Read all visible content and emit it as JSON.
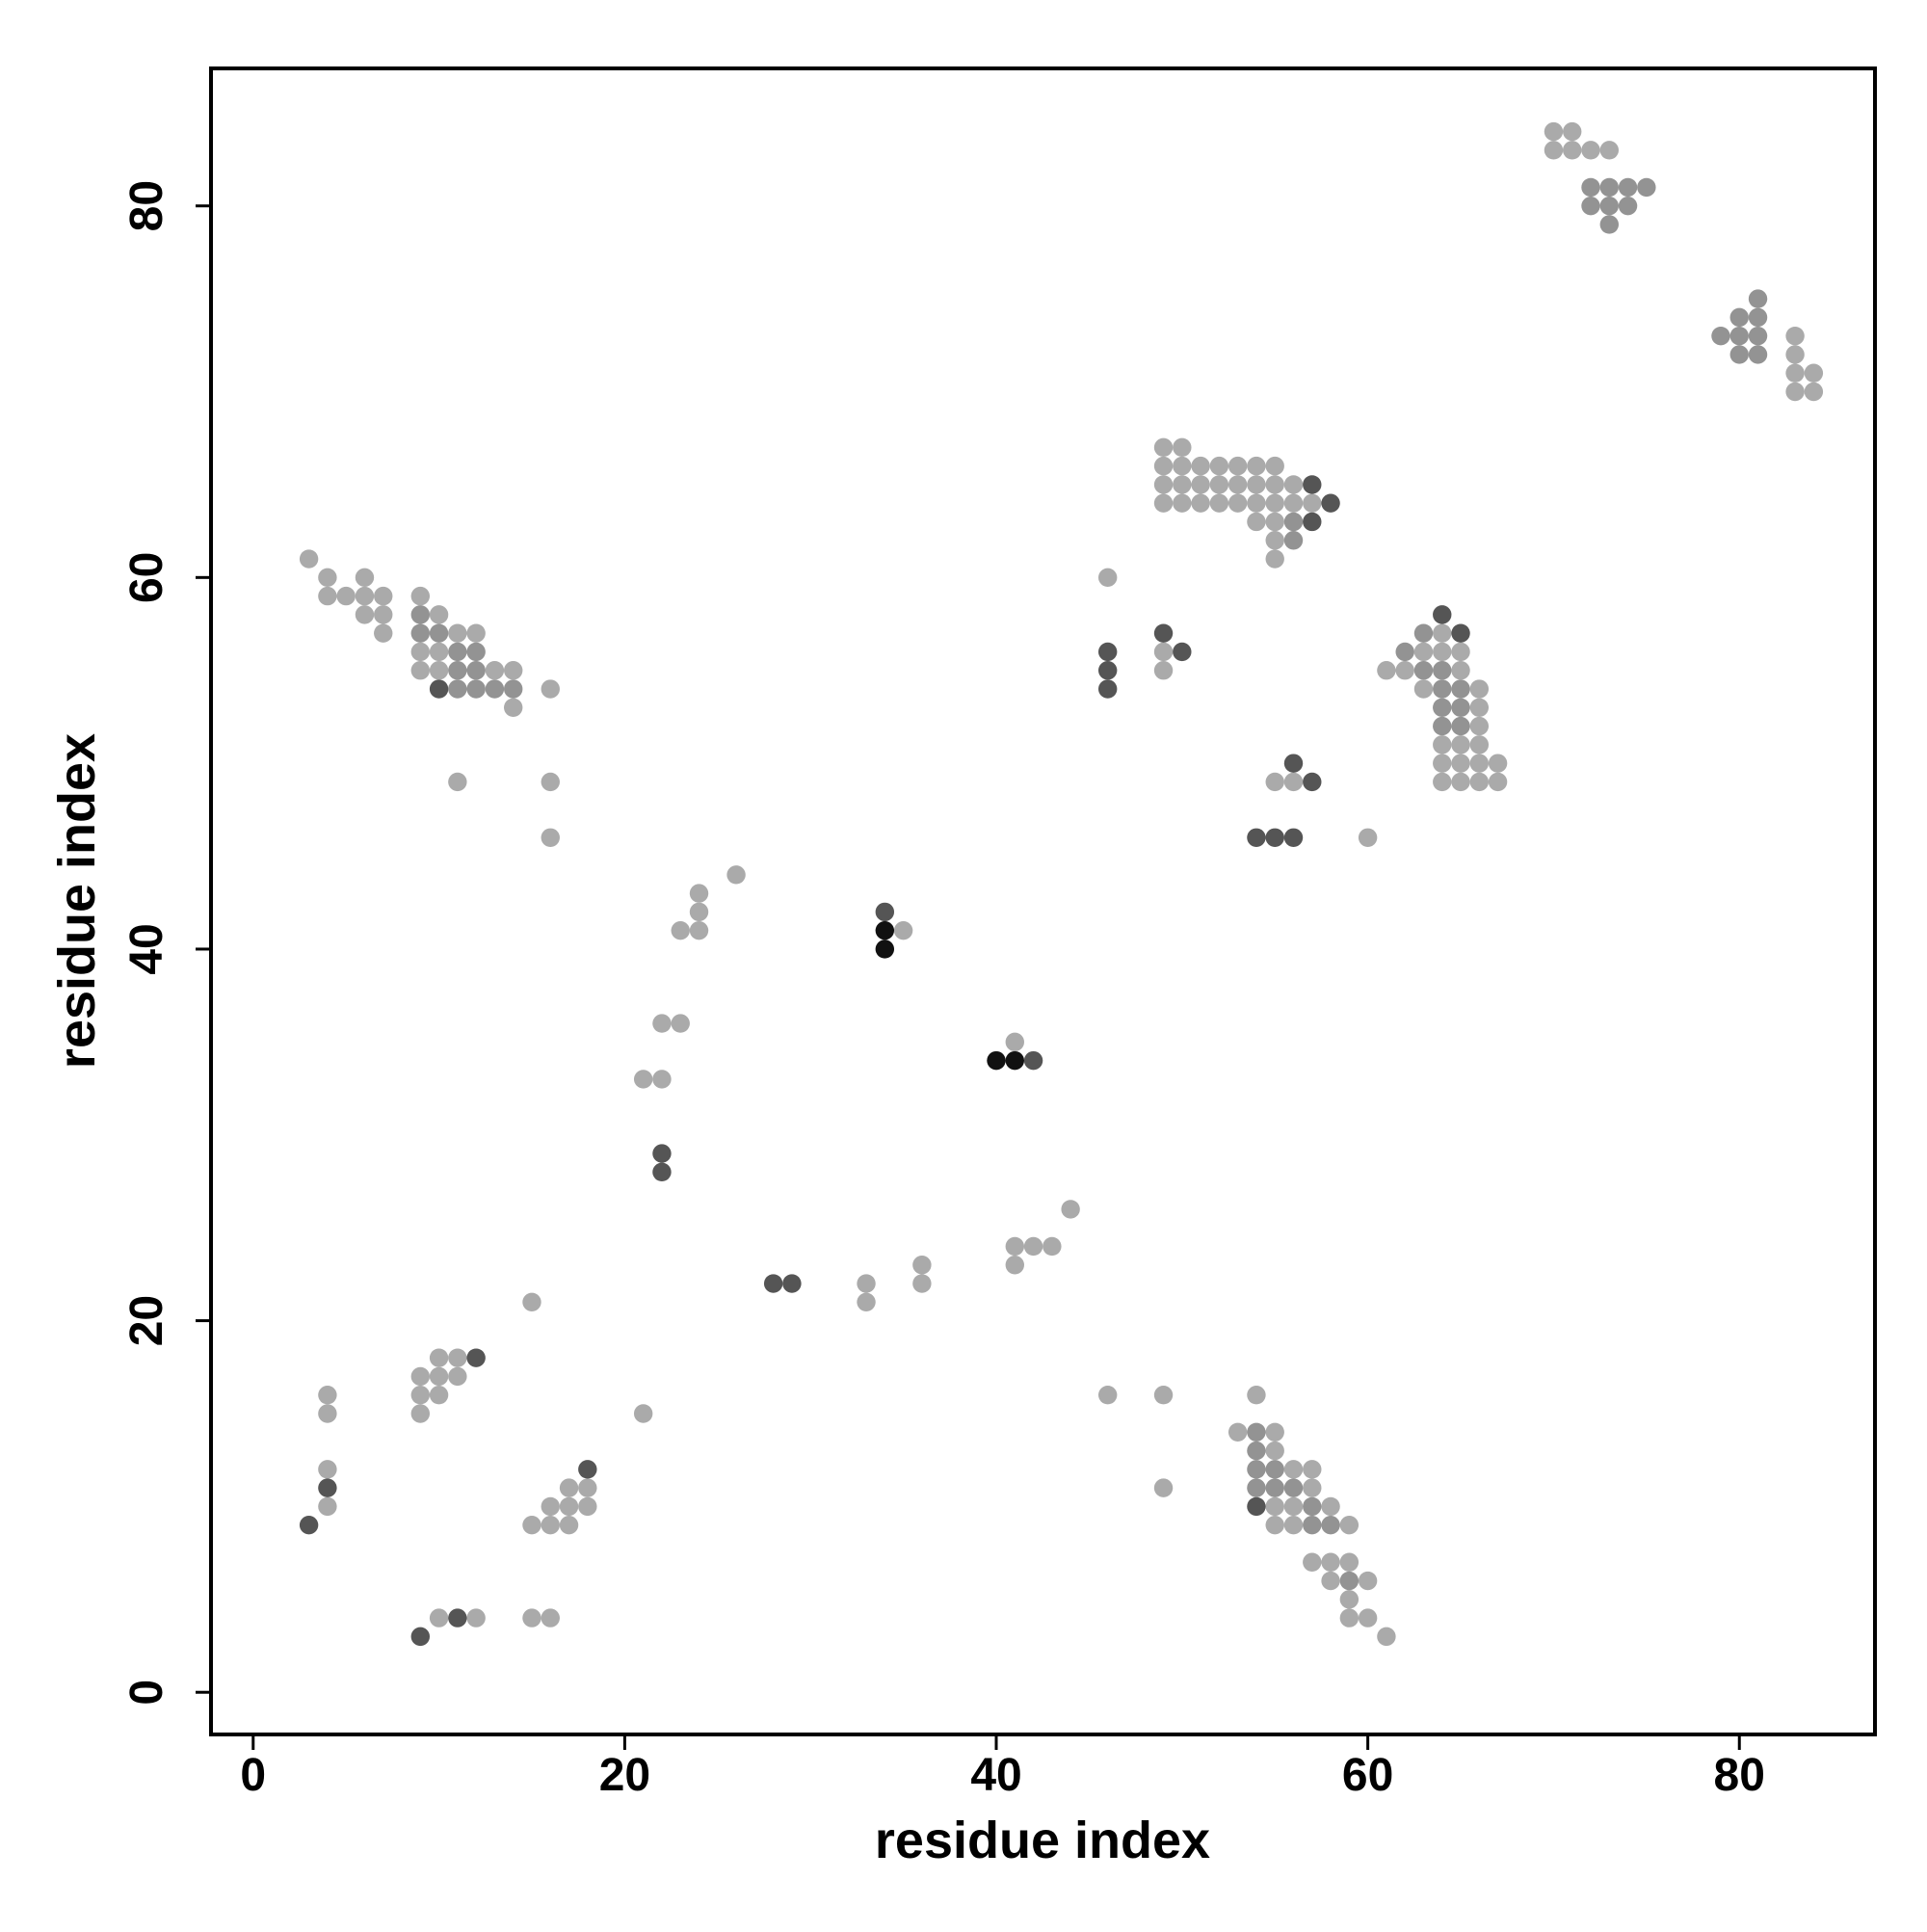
{
  "chart_data": {
    "type": "scatter",
    "xlabel": "residue index",
    "ylabel": "residue index",
    "xlim": [
      -2.27,
      87.3
    ],
    "ylim": [
      -2.27,
      87.4
    ],
    "xticks": [
      0,
      20,
      40,
      60,
      80
    ],
    "yticks": [
      0,
      20,
      40,
      60,
      80
    ],
    "series": [
      {
        "color": "#aaaaaa",
        "x": [
          70,
          71,
          70,
          71,
          72,
          73,
          83,
          83,
          83,
          84,
          83,
          84,
          49,
          50,
          49,
          50,
          51,
          52,
          53,
          54,
          55,
          49,
          50,
          51,
          52,
          53,
          54,
          55,
          56,
          49,
          50,
          51,
          52,
          53,
          54,
          55,
          56,
          57,
          54,
          55,
          55,
          55,
          3,
          4,
          6,
          4,
          5,
          6,
          7,
          9,
          6,
          7,
          10,
          7,
          11,
          12,
          9,
          10,
          9,
          10,
          13,
          14,
          16,
          14,
          11,
          16,
          16,
          46,
          49,
          49,
          64,
          63,
          64,
          65,
          61,
          62,
          65,
          63,
          66,
          66,
          66,
          64,
          65,
          66,
          64,
          65,
          66,
          67,
          64,
          65,
          66,
          67,
          55,
          56,
          60,
          26,
          24,
          24,
          23,
          24,
          35,
          22,
          23,
          41,
          21,
          22,
          44,
          41,
          42,
          43,
          36,
          41,
          33,
          36,
          15,
          33,
          10,
          11,
          9,
          10,
          11,
          4,
          9,
          10,
          46,
          49,
          54,
          4,
          9,
          21,
          53,
          55,
          55,
          4,
          56,
          57,
          17,
          18,
          49,
          57,
          4,
          16,
          17,
          18,
          55,
          56,
          58,
          15,
          16,
          17,
          55,
          56,
          59,
          57,
          58,
          59,
          58,
          60,
          59,
          10,
          12,
          15,
          16,
          59,
          60,
          61
        ],
        "values": [
          84,
          84,
          83,
          83,
          83,
          83,
          73,
          72,
          71,
          71,
          70,
          70,
          67,
          67,
          66,
          66,
          66,
          66,
          66,
          66,
          66,
          65,
          65,
          65,
          65,
          65,
          65,
          65,
          65,
          64,
          64,
          64,
          64,
          64,
          64,
          64,
          64,
          64,
          63,
          63,
          62,
          61,
          61,
          60,
          60,
          59,
          59,
          59,
          59,
          59,
          58,
          58,
          58,
          57,
          57,
          57,
          56,
          56,
          55,
          55,
          55,
          55,
          54,
          53,
          49,
          49,
          46,
          60,
          56,
          55,
          57,
          56,
          56,
          56,
          55,
          55,
          55,
          54,
          54,
          53,
          52,
          51,
          51,
          51,
          50,
          50,
          50,
          50,
          49,
          49,
          49,
          49,
          49,
          49,
          46,
          44,
          43,
          42,
          41,
          41,
          41,
          36,
          36,
          35,
          33,
          33,
          26,
          24,
          24,
          24,
          23,
          23,
          22,
          22,
          21,
          21,
          18,
          18,
          17,
          17,
          17,
          16,
          16,
          16,
          16,
          16,
          16,
          15,
          15,
          15,
          14,
          14,
          13,
          12,
          12,
          12,
          11,
          11,
          11,
          11,
          10,
          10,
          10,
          10,
          10,
          10,
          10,
          9,
          9,
          9,
          9,
          9,
          9,
          7,
          7,
          7,
          6,
          6,
          5,
          4,
          4,
          4,
          4,
          4,
          4,
          3
        ]
      },
      {
        "color": "#939393",
        "x": [
          72,
          73,
          74,
          75,
          72,
          73,
          74,
          73,
          81,
          80,
          81,
          79,
          80,
          81,
          80,
          81,
          56,
          56,
          9,
          9,
          10,
          11,
          12,
          11,
          12,
          11,
          12,
          13,
          14,
          63,
          62,
          63,
          64,
          64,
          65,
          64,
          65,
          64,
          65,
          54,
          54,
          54,
          55,
          54,
          55,
          56,
          57,
          57,
          58,
          59
        ],
        "values": [
          81,
          81,
          81,
          81,
          80,
          80,
          80,
          79,
          75,
          74,
          74,
          73,
          73,
          73,
          72,
          72,
          63,
          62,
          58,
          57,
          57,
          56,
          56,
          55,
          55,
          54,
          54,
          54,
          54,
          57,
          56,
          55,
          55,
          54,
          54,
          53,
          53,
          52,
          52,
          14,
          13,
          12,
          12,
          11,
          11,
          11,
          10,
          9,
          9,
          6
        ]
      },
      {
        "color": "#555555",
        "x": [
          57,
          58,
          57,
          10,
          46,
          50,
          49,
          46,
          46,
          64,
          65,
          56,
          57,
          54,
          55,
          56,
          34,
          42,
          22,
          22,
          28,
          29,
          12,
          18,
          4,
          54,
          3,
          11,
          9
        ],
        "values": [
          65,
          64,
          63,
          54,
          56,
          56,
          57,
          55,
          54,
          58,
          57,
          50,
          49,
          46,
          46,
          46,
          42,
          34,
          29,
          28,
          22,
          22,
          18,
          12,
          11,
          10,
          9,
          4,
          3
        ]
      },
      {
        "color": "#111111",
        "x": [
          34,
          34,
          40,
          41
        ],
        "values": [
          41,
          40,
          34,
          34
        ]
      }
    ]
  }
}
